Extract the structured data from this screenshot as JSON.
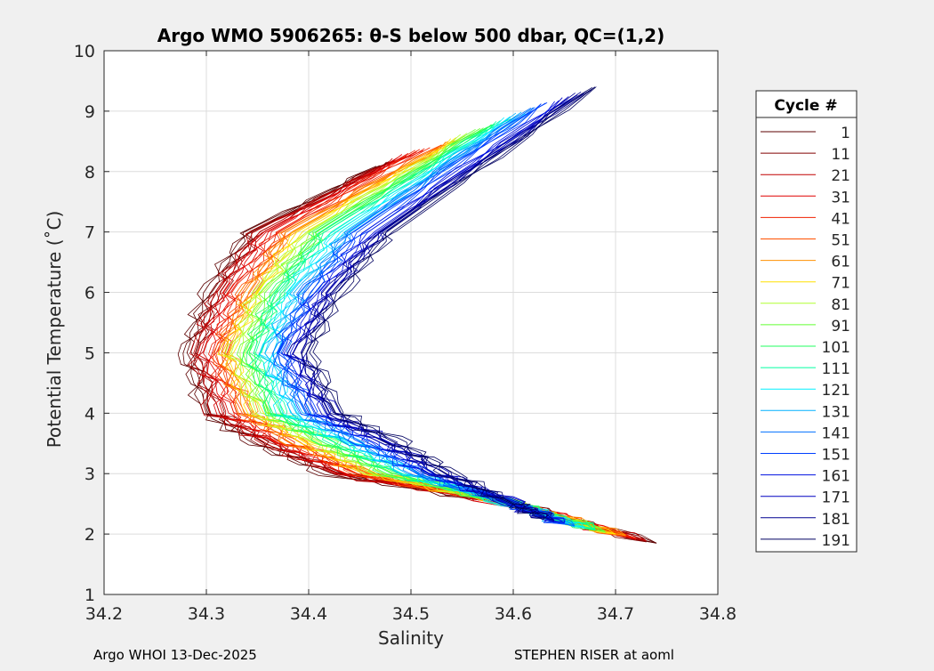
{
  "chart_data": {
    "type": "line",
    "title": "Argo WMO 5906265: θ-S below 500 dbar,  QC=(1,2)",
    "xlabel": "Salinity",
    "ylabel": "Potential Temperature (˚C)",
    "xlim": [
      34.2,
      34.8
    ],
    "ylim": [
      1,
      10
    ],
    "xticks": [
      "34.2",
      "34.3",
      "34.4",
      "34.5",
      "34.6",
      "34.7",
      "34.8"
    ],
    "yticks": [
      "1",
      "2",
      "3",
      "4",
      "5",
      "6",
      "7",
      "8",
      "9",
      "10"
    ],
    "grid": true,
    "legend": {
      "title": "Cycle #",
      "placement": "outside-right"
    },
    "series": [
      {
        "name": "1",
        "color": "#5c0000",
        "S": [
          34.47,
          34.34,
          34.3,
          34.28,
          34.3,
          34.35,
          34.42,
          34.6,
          34.74
        ],
        "theta": [
          8.1,
          7,
          6,
          5,
          4,
          3.5,
          3,
          2.5,
          1.85
        ]
      },
      {
        "name": "11",
        "color": "#800000",
        "S": [
          34.48,
          34.35,
          34.31,
          34.29,
          34.31,
          34.36,
          34.43,
          34.6,
          34.73
        ],
        "theta": [
          8.17,
          7,
          6,
          5,
          4,
          3.5,
          3,
          2.5,
          1.87
        ]
      },
      {
        "name": "21",
        "color": "#c00000",
        "S": [
          34.49,
          34.35,
          34.31,
          34.29,
          34.31,
          34.36,
          34.43,
          34.6,
          34.73
        ],
        "theta": [
          8.24,
          7,
          6,
          5,
          4,
          3.5,
          3,
          2.5,
          1.89
        ]
      },
      {
        "name": "31",
        "color": "#e00000",
        "S": [
          34.5,
          34.36,
          34.32,
          34.3,
          34.32,
          34.37,
          34.44,
          34.6,
          34.72
        ],
        "theta": [
          8.31,
          7,
          6,
          5,
          4,
          3.5,
          3,
          2.5,
          1.91
        ]
      },
      {
        "name": "41",
        "color": "#f02000",
        "S": [
          34.51,
          34.37,
          34.33,
          34.31,
          34.33,
          34.38,
          34.45,
          34.6,
          34.72
        ],
        "theta": [
          8.37,
          7,
          6,
          5,
          4,
          3.5,
          3,
          2.5,
          1.93
        ]
      },
      {
        "name": "51",
        "color": "#ff5000",
        "S": [
          34.53,
          34.38,
          34.34,
          34.31,
          34.34,
          34.39,
          34.45,
          34.6,
          34.71
        ],
        "theta": [
          8.44,
          7,
          6,
          5,
          4,
          3.5,
          3,
          2.5,
          1.96
        ]
      },
      {
        "name": "61",
        "color": "#ff9000",
        "S": [
          34.54,
          34.38,
          34.34,
          34.32,
          34.34,
          34.39,
          34.46,
          34.6,
          34.71
        ],
        "theta": [
          8.51,
          7,
          6,
          5,
          4,
          3.5,
          3,
          2.5,
          1.98
        ]
      },
      {
        "name": "71",
        "color": "#ffe000",
        "S": [
          34.55,
          34.39,
          34.35,
          34.32,
          34.35,
          34.4,
          34.46,
          34.6,
          34.7
        ],
        "theta": [
          8.58,
          7,
          6,
          5,
          4,
          3.5,
          3,
          2.5,
          2.0
        ]
      },
      {
        "name": "81",
        "color": "#b0ff30",
        "S": [
          34.56,
          34.4,
          34.35,
          34.33,
          34.35,
          34.41,
          34.47,
          34.6,
          34.69
        ],
        "theta": [
          8.65,
          7,
          6,
          5,
          4,
          3.5,
          3,
          2.5,
          2.02
        ]
      },
      {
        "name": "91",
        "color": "#60ff30",
        "S": [
          34.57,
          34.41,
          34.36,
          34.34,
          34.36,
          34.42,
          34.48,
          34.6,
          34.69
        ],
        "theta": [
          8.72,
          7,
          6,
          5,
          4,
          3.5,
          3,
          2.5,
          2.04
        ]
      },
      {
        "name": "101",
        "color": "#20ff60",
        "S": [
          34.58,
          34.41,
          34.37,
          34.34,
          34.37,
          34.42,
          34.48,
          34.6,
          34.68
        ],
        "theta": [
          8.78,
          7,
          6,
          5,
          4,
          3.5,
          3,
          2.5,
          2.06
        ]
      },
      {
        "name": "111",
        "color": "#00ffa0",
        "S": [
          34.59,
          34.42,
          34.37,
          34.35,
          34.37,
          34.43,
          34.49,
          34.6,
          34.68
        ],
        "theta": [
          8.85,
          7,
          6,
          5,
          4,
          3.5,
          3,
          2.5,
          2.08
        ]
      },
      {
        "name": "121",
        "color": "#00f0ff",
        "S": [
          34.6,
          34.43,
          34.38,
          34.36,
          34.38,
          34.44,
          34.5,
          34.6,
          34.67
        ],
        "theta": [
          8.92,
          7,
          6,
          5,
          4,
          3.5,
          3,
          2.5,
          2.1
        ]
      },
      {
        "name": "131",
        "color": "#00b0ff",
        "S": [
          34.61,
          34.44,
          34.39,
          34.36,
          34.39,
          34.45,
          34.5,
          34.6,
          34.66
        ],
        "theta": [
          8.99,
          7,
          6,
          5,
          4,
          3.5,
          3,
          2.5,
          2.12
        ]
      },
      {
        "name": "141",
        "color": "#0070ff",
        "S": [
          34.62,
          34.44,
          34.4,
          34.37,
          34.4,
          34.45,
          34.51,
          34.6,
          34.66
        ],
        "theta": [
          9.06,
          7,
          6,
          5,
          4,
          3.5,
          3,
          2.5,
          2.14
        ]
      },
      {
        "name": "151",
        "color": "#0040ff",
        "S": [
          34.63,
          34.45,
          34.4,
          34.37,
          34.4,
          34.46,
          34.51,
          34.6,
          34.65
        ],
        "theta": [
          9.13,
          7,
          6,
          5,
          4,
          3.5,
          3,
          2.5,
          2.17
        ]
      },
      {
        "name": "161",
        "color": "#0010e0",
        "S": [
          34.65,
          34.46,
          34.41,
          34.38,
          34.41,
          34.47,
          34.52,
          34.6,
          34.65
        ],
        "theta": [
          9.19,
          7,
          6,
          5,
          4,
          3.5,
          3,
          2.5,
          2.19
        ]
      },
      {
        "name": "171",
        "color": "#0000c0",
        "S": [
          34.66,
          34.47,
          34.42,
          34.39,
          34.42,
          34.48,
          34.53,
          34.6,
          34.64
        ],
        "theta": [
          9.26,
          7,
          6,
          5,
          4,
          3.5,
          3,
          2.5,
          2.21
        ]
      },
      {
        "name": "181",
        "color": "#000090",
        "S": [
          34.67,
          34.47,
          34.42,
          34.39,
          34.42,
          34.48,
          34.53,
          34.6,
          34.64
        ],
        "theta": [
          9.33,
          7,
          6,
          5,
          4,
          3.5,
          3,
          2.5,
          2.23
        ]
      },
      {
        "name": "191",
        "color": "#000060",
        "S": [
          34.68,
          34.48,
          34.43,
          34.4,
          34.43,
          34.49,
          34.54,
          34.6,
          34.63
        ],
        "theta": [
          9.4,
          7,
          6,
          5,
          4,
          3.5,
          3,
          2.5,
          2.25
        ]
      }
    ]
  },
  "footer": {
    "left": "Argo WHOI 13-Dec-2025",
    "right": "STEPHEN RISER at aoml"
  }
}
